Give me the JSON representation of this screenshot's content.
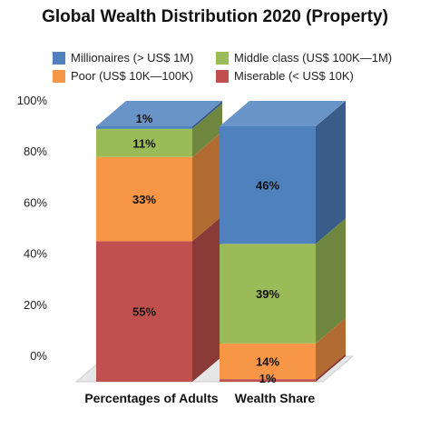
{
  "chart_data": {
    "type": "bar",
    "stacked": true,
    "title": "Global Wealth Distribution 2020 (Property)",
    "categories": [
      "Percentages of Adults",
      "Wealth Share"
    ],
    "series": [
      {
        "name": "Miserable (< US$ 10K)",
        "values": [
          55,
          1
        ],
        "labels": [
          "55%",
          "1%"
        ],
        "color": "#c0504d"
      },
      {
        "name": "Poor (US$ 10K—100K)",
        "values": [
          33,
          14
        ],
        "labels": [
          "33%",
          "14%"
        ],
        "color": "#f79646"
      },
      {
        "name": "Middle class (US$ 100K—1M)",
        "values": [
          11,
          39
        ],
        "labels": [
          "11%",
          "39%"
        ],
        "color": "#9bbb59"
      },
      {
        "name": "Millionaires (> US$ 1M)",
        "values": [
          1,
          46
        ],
        "labels": [
          "1%",
          "46%"
        ],
        "color": "#4f81bd"
      }
    ],
    "y_ticks": [
      "0%",
      "20%",
      "40%",
      "60%",
      "80%",
      "100%"
    ],
    "ylim": [
      0,
      100
    ],
    "legend_position": "top",
    "grid": false,
    "three_d": true
  }
}
